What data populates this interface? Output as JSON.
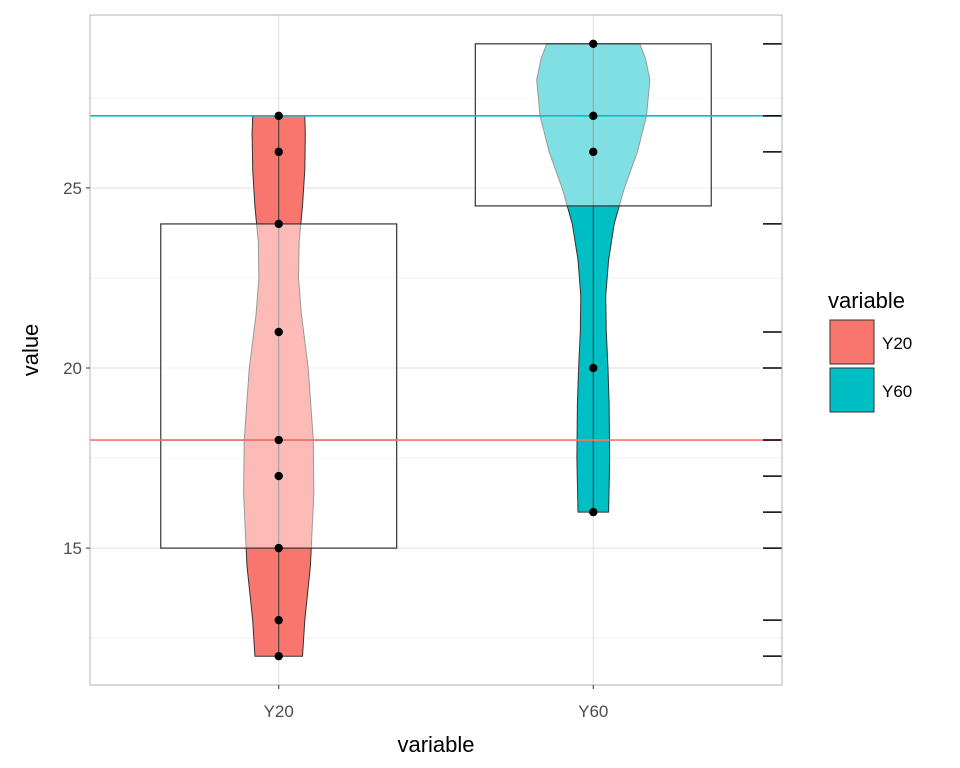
{
  "chart_data": {
    "type": "violin",
    "xlabel": "variable",
    "ylabel": "value",
    "categories": [
      "Y20",
      "Y60"
    ],
    "yticks": [
      15,
      20,
      25
    ],
    "ylim": [
      11.2,
      29.8
    ],
    "grid": true,
    "legend": {
      "title": "variable",
      "position": "right",
      "entries": [
        {
          "label": "Y20",
          "color": "#F8766D"
        },
        {
          "label": "Y60",
          "color": "#00BFC4"
        }
      ]
    },
    "series": [
      {
        "category": "Y20",
        "color": "#F8766D",
        "points": [
          12,
          13,
          15,
          17,
          18,
          21,
          24,
          26,
          27
        ],
        "box": {
          "q1": 15,
          "median": 18,
          "q3": 24
        },
        "mean": 18,
        "range": [
          12,
          27
        ],
        "violin_profile": [
          [
            12.0,
            0.42
          ],
          [
            13.0,
            0.46
          ],
          [
            14.5,
            0.56
          ],
          [
            16.5,
            0.62
          ],
          [
            18.0,
            0.61
          ],
          [
            20.0,
            0.52
          ],
          [
            21.5,
            0.4
          ],
          [
            22.5,
            0.35
          ],
          [
            23.5,
            0.36
          ],
          [
            24.5,
            0.42
          ],
          [
            25.5,
            0.46
          ],
          [
            26.5,
            0.47
          ],
          [
            27.0,
            0.46
          ]
        ]
      },
      {
        "category": "Y60",
        "color": "#00BFC4",
        "points": [
          16,
          20,
          26,
          27,
          29
        ],
        "box": {
          "q1": 24.5,
          "median": 27,
          "q3": 29
        },
        "mean": 27,
        "range": [
          16,
          29
        ],
        "violin_profile": [
          [
            16.0,
            0.27
          ],
          [
            17.5,
            0.29
          ],
          [
            19.0,
            0.28
          ],
          [
            20.0,
            0.26
          ],
          [
            21.0,
            0.23
          ],
          [
            22.0,
            0.22
          ],
          [
            23.0,
            0.27
          ],
          [
            24.0,
            0.37
          ],
          [
            25.0,
            0.55
          ],
          [
            26.0,
            0.78
          ],
          [
            27.0,
            0.94
          ],
          [
            28.0,
            1.0
          ],
          [
            28.6,
            0.92
          ],
          [
            29.0,
            0.82
          ]
        ]
      }
    ],
    "rug_marks": [
      12,
      13,
      15,
      16,
      17,
      18,
      20,
      21,
      24,
      26,
      27,
      29
    ]
  }
}
